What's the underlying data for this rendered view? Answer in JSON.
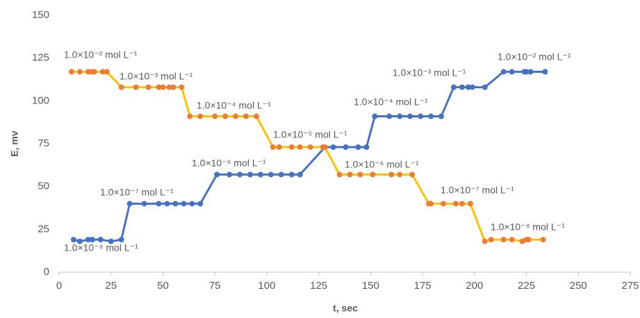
{
  "chart_data": {
    "type": "line",
    "x_label": "t, sec",
    "y_label": "E, mv",
    "xlim": [
      0,
      275
    ],
    "xticks": [
      0,
      25,
      50,
      75,
      100,
      125,
      150,
      175,
      200,
      225,
      250,
      275
    ],
    "ylim": [
      0,
      150
    ],
    "yticks": [
      0,
      25,
      50,
      75,
      100,
      125,
      150
    ],
    "grid": false,
    "series": [
      {
        "color": "#4472c4",
        "marker_color": "#4472c4",
        "x": [
          7,
          10,
          14,
          16,
          20,
          25,
          30,
          34,
          41,
          48,
          52,
          56,
          60,
          64,
          68,
          76,
          82,
          87,
          92,
          97,
          102,
          107,
          112,
          116,
          128,
          132,
          138,
          144,
          148,
          152,
          159,
          164,
          169,
          174,
          179,
          184,
          190,
          194,
          197,
          199,
          205,
          214,
          218,
          224,
          225,
          227,
          234
        ],
        "values": [
          19,
          18,
          19,
          19,
          19,
          18,
          19,
          40,
          40,
          40,
          40,
          40,
          40,
          40,
          40,
          57,
          57,
          57,
          57,
          57,
          57,
          57,
          57,
          57,
          73,
          73,
          73,
          73,
          73,
          91,
          91,
          91,
          91,
          91,
          91,
          91,
          108,
          108,
          108,
          108,
          108,
          117,
          117,
          117,
          117,
          117,
          117
        ]
      },
      {
        "color": "#ffc000",
        "marker_color": "#ed7d31",
        "x": [
          6,
          10,
          14,
          16,
          17,
          21,
          23,
          30,
          37,
          43,
          48,
          50,
          53,
          55,
          59,
          63,
          68,
          75,
          80,
          85,
          90,
          95,
          103,
          106,
          112,
          116,
          121,
          127,
          128,
          135,
          140,
          145,
          151,
          160,
          164,
          170,
          178,
          179,
          185,
          191,
          194,
          198,
          205,
          208,
          214,
          218,
          223,
          225,
          226,
          233
        ],
        "values": [
          117,
          117,
          117,
          117,
          117,
          117,
          117,
          108,
          108,
          108,
          108,
          108,
          108,
          108,
          108,
          91,
          91,
          91,
          91,
          91,
          91,
          91,
          73,
          73,
          73,
          73,
          73,
          73,
          73,
          57,
          57,
          57,
          57,
          57,
          57,
          57,
          40,
          40,
          40,
          40,
          40,
          40,
          18,
          19,
          19,
          19,
          18,
          19,
          19,
          19
        ]
      }
    ],
    "annotations": [
      "1.0×10⁻² mol L⁻¹",
      "1.0×10⁻³ mol L⁻¹",
      "1.0×10⁻⁴ mol L⁻¹",
      "1.0×10⁻⁵ mol L⁻¹",
      "1.0×10⁻⁶ mol L⁻¹",
      "1.0×10⁻⁷ mol L⁻¹",
      "1.0×10⁻⁸ mol L⁻¹",
      "1.0×10⁻⁴ mol L⁻¹",
      "1.0×10⁻³ mol L⁻¹",
      "1.0×10⁻² mol L⁻¹",
      "1.0×10⁻⁶ mol L⁻¹",
      "1.0×10⁻⁷ mol L⁻¹",
      "1.0×10⁻⁸ mol L⁻¹"
    ]
  }
}
